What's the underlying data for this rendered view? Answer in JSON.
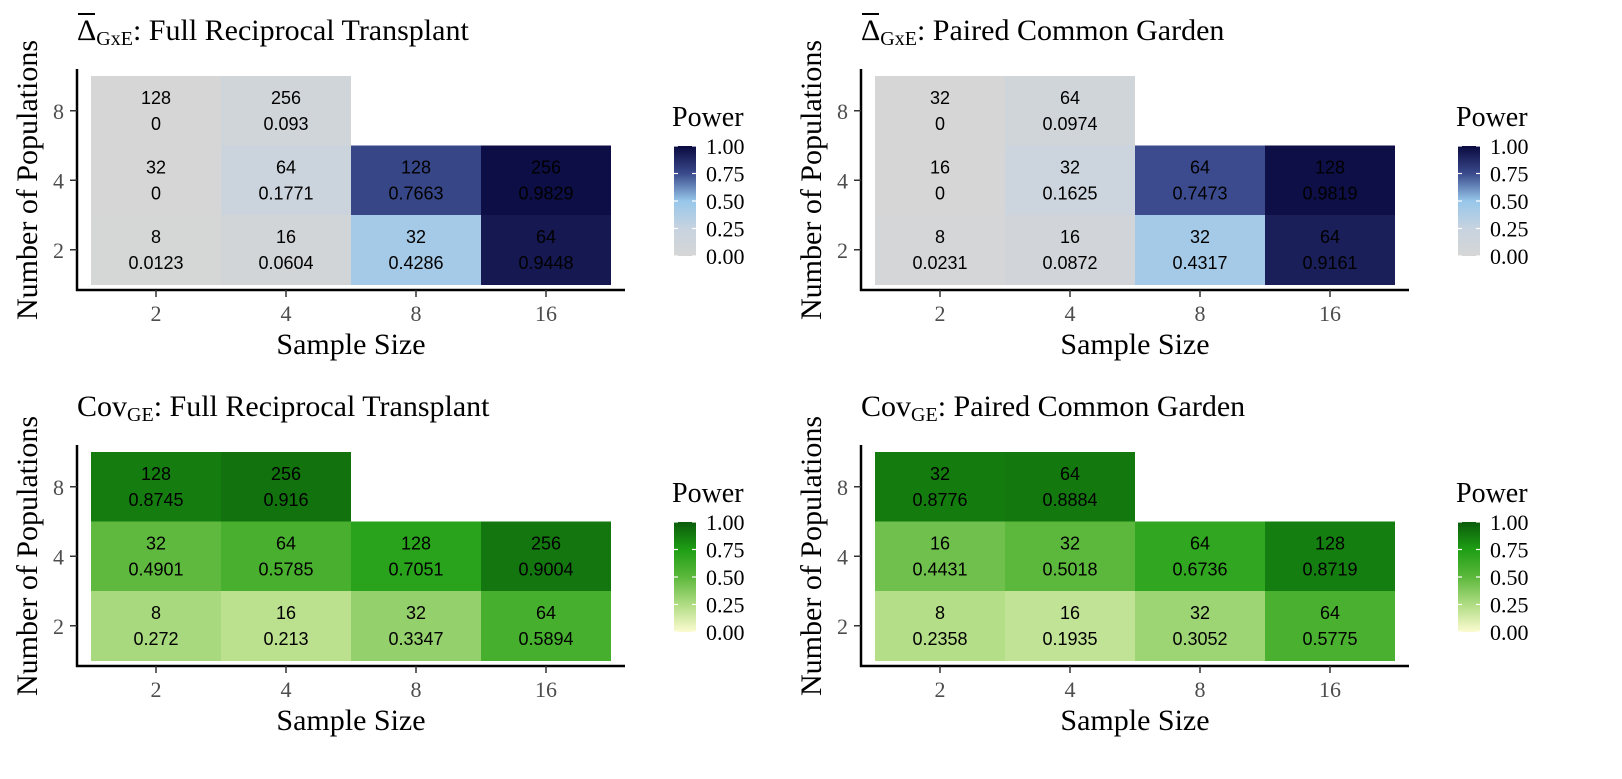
{
  "axis_labels": {
    "x": "Sample Size",
    "y": "Number of Populations"
  },
  "legend": {
    "title": "Power",
    "ticks": [
      "0.00",
      "0.25",
      "0.50",
      "0.75",
      "1.00"
    ],
    "tick_values": [
      0,
      0.25,
      0.5,
      0.75,
      1.0
    ]
  },
  "colors": {
    "blue_scale": [
      "#d6d6d6",
      "#c7d3e0",
      "#97c6ea",
      "#3a4a8c",
      "#0a0a40"
    ],
    "green_scale": [
      "#fcfbd0",
      "#b0dc84",
      "#5cb83c",
      "#1e9e14",
      "#0b5c0b"
    ]
  },
  "chart_data": [
    {
      "type": "heatmap",
      "title_main": "Δ",
      "title_sub": "GxE",
      "title_rest": ": Full Reciprocal Transplant",
      "xlabel": "Sample Size",
      "ylabel": "Number of Populations",
      "x_categories": [
        "2",
        "4",
        "8",
        "16"
      ],
      "y_categories": [
        "2",
        "4",
        "8"
      ],
      "legend_title": "Power",
      "scale": "blue",
      "cells": [
        {
          "x": "2",
          "y": "8",
          "n": "128",
          "power": 0
        },
        {
          "x": "4",
          "y": "8",
          "n": "256",
          "power": 0.093
        },
        {
          "x": "2",
          "y": "4",
          "n": "32",
          "power": 0
        },
        {
          "x": "4",
          "y": "4",
          "n": "64",
          "power": 0.1771
        },
        {
          "x": "8",
          "y": "4",
          "n": "128",
          "power": 0.7663
        },
        {
          "x": "16",
          "y": "4",
          "n": "256",
          "power": 0.9829
        },
        {
          "x": "2",
          "y": "2",
          "n": "8",
          "power": 0.0123
        },
        {
          "x": "4",
          "y": "2",
          "n": "16",
          "power": 0.0604
        },
        {
          "x": "8",
          "y": "2",
          "n": "32",
          "power": 0.4286
        },
        {
          "x": "16",
          "y": "2",
          "n": "64",
          "power": 0.9448
        }
      ]
    },
    {
      "type": "heatmap",
      "title_main": "Δ",
      "title_sub": "GxE",
      "title_rest": ": Paired Common Garden",
      "xlabel": "Sample Size",
      "ylabel": "Number of Populations",
      "x_categories": [
        "2",
        "4",
        "8",
        "16"
      ],
      "y_categories": [
        "2",
        "4",
        "8"
      ],
      "legend_title": "Power",
      "scale": "blue",
      "cells": [
        {
          "x": "2",
          "y": "8",
          "n": "32",
          "power": 0
        },
        {
          "x": "4",
          "y": "8",
          "n": "64",
          "power": 0.0974
        },
        {
          "x": "2",
          "y": "4",
          "n": "16",
          "power": 0
        },
        {
          "x": "4",
          "y": "4",
          "n": "32",
          "power": 0.1625
        },
        {
          "x": "8",
          "y": "4",
          "n": "64",
          "power": 0.7473
        },
        {
          "x": "16",
          "y": "4",
          "n": "128",
          "power": 0.9819
        },
        {
          "x": "2",
          "y": "2",
          "n": "8",
          "power": 0.0231
        },
        {
          "x": "4",
          "y": "2",
          "n": "16",
          "power": 0.0872
        },
        {
          "x": "8",
          "y": "2",
          "n": "32",
          "power": 0.4317
        },
        {
          "x": "16",
          "y": "2",
          "n": "64",
          "power": 0.9161
        }
      ]
    },
    {
      "type": "heatmap",
      "title_main": "Cov",
      "title_sub": "GE",
      "title_rest": ": Full Reciprocal Transplant",
      "xlabel": "Sample Size",
      "ylabel": "Number of Populations",
      "x_categories": [
        "2",
        "4",
        "8",
        "16"
      ],
      "y_categories": [
        "2",
        "4",
        "8"
      ],
      "legend_title": "Power",
      "scale": "green",
      "cells": [
        {
          "x": "2",
          "y": "8",
          "n": "128",
          "power": 0.8745
        },
        {
          "x": "4",
          "y": "8",
          "n": "256",
          "power": 0.916
        },
        {
          "x": "2",
          "y": "4",
          "n": "32",
          "power": 0.4901
        },
        {
          "x": "4",
          "y": "4",
          "n": "64",
          "power": 0.5785
        },
        {
          "x": "8",
          "y": "4",
          "n": "128",
          "power": 0.7051
        },
        {
          "x": "16",
          "y": "4",
          "n": "256",
          "power": 0.9004
        },
        {
          "x": "2",
          "y": "2",
          "n": "8",
          "power": 0.272
        },
        {
          "x": "4",
          "y": "2",
          "n": "16",
          "power": 0.213
        },
        {
          "x": "8",
          "y": "2",
          "n": "32",
          "power": 0.3347
        },
        {
          "x": "16",
          "y": "2",
          "n": "64",
          "power": 0.5894
        }
      ]
    },
    {
      "type": "heatmap",
      "title_main": "Cov",
      "title_sub": "GE",
      "title_rest": ": Paired Common Garden",
      "xlabel": "Sample Size",
      "ylabel": "Number of Populations",
      "x_categories": [
        "2",
        "4",
        "8",
        "16"
      ],
      "y_categories": [
        "2",
        "4",
        "8"
      ],
      "legend_title": "Power",
      "scale": "green",
      "cells": [
        {
          "x": "2",
          "y": "8",
          "n": "32",
          "power": 0.8776
        },
        {
          "x": "4",
          "y": "8",
          "n": "64",
          "power": 0.8884
        },
        {
          "x": "2",
          "y": "4",
          "n": "16",
          "power": 0.4431
        },
        {
          "x": "4",
          "y": "4",
          "n": "32",
          "power": 0.5018
        },
        {
          "x": "8",
          "y": "4",
          "n": "64",
          "power": 0.6736
        },
        {
          "x": "16",
          "y": "4",
          "n": "128",
          "power": 0.8719
        },
        {
          "x": "2",
          "y": "2",
          "n": "8",
          "power": 0.2358
        },
        {
          "x": "4",
          "y": "2",
          "n": "16",
          "power": 0.1935
        },
        {
          "x": "8",
          "y": "2",
          "n": "32",
          "power": 0.3052
        },
        {
          "x": "16",
          "y": "2",
          "n": "64",
          "power": 0.5775
        }
      ]
    }
  ]
}
